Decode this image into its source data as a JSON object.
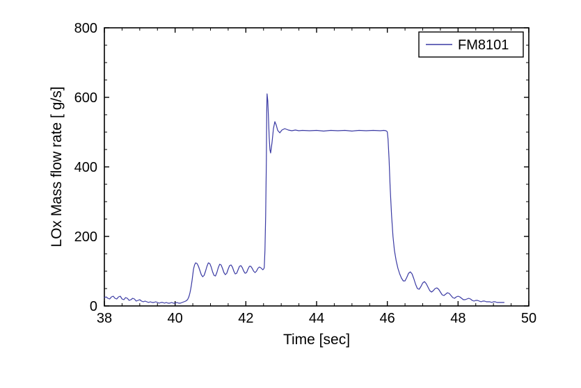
{
  "chart": {
    "type": "line",
    "background_color": "#ffffff",
    "plot_border_color": "#000000",
    "plot_border_width": 1.6,
    "axis_tick_length_major": 7,
    "axis_tick_length_minor": 4,
    "line_color": "#3939a3",
    "line_width": 1.2,
    "xlabel": "Time [sec]",
    "ylabel": "LOx Mass flow rate [ g/s]",
    "label_fontsize": 21,
    "tick_fontsize": 20,
    "xlim": [
      38,
      50
    ],
    "ylim": [
      0,
      800
    ],
    "xtick_step": 2,
    "ytick_step": 200,
    "x_minor_per_major": 4,
    "y_minor_per_major": 4,
    "legend": {
      "label": "FM8101",
      "border_color": "#000000",
      "line_color": "#3939a3",
      "position": "top-right"
    },
    "series": {
      "name": "FM8101",
      "points": [
        [
          38.0,
          24
        ],
        [
          38.05,
          26
        ],
        [
          38.1,
          22
        ],
        [
          38.15,
          20
        ],
        [
          38.2,
          26
        ],
        [
          38.25,
          28
        ],
        [
          38.3,
          22
        ],
        [
          38.35,
          20
        ],
        [
          38.4,
          26
        ],
        [
          38.45,
          28
        ],
        [
          38.5,
          20
        ],
        [
          38.55,
          18
        ],
        [
          38.6,
          24
        ],
        [
          38.65,
          22
        ],
        [
          38.7,
          16
        ],
        [
          38.75,
          18
        ],
        [
          38.8,
          22
        ],
        [
          38.85,
          20
        ],
        [
          38.9,
          14
        ],
        [
          38.95,
          16
        ],
        [
          39.0,
          18
        ],
        [
          39.05,
          14
        ],
        [
          39.1,
          12
        ],
        [
          39.15,
          14
        ],
        [
          39.2,
          12
        ],
        [
          39.25,
          10
        ],
        [
          39.3,
          12
        ],
        [
          39.35,
          10
        ],
        [
          39.4,
          10
        ],
        [
          39.45,
          12
        ],
        [
          39.5,
          10
        ],
        [
          39.55,
          8
        ],
        [
          39.6,
          10
        ],
        [
          39.65,
          10
        ],
        [
          39.7,
          8
        ],
        [
          39.75,
          10
        ],
        [
          39.8,
          8
        ],
        [
          39.85,
          8
        ],
        [
          39.9,
          10
        ],
        [
          39.95,
          8
        ],
        [
          40.0,
          8
        ],
        [
          40.05,
          10
        ],
        [
          40.1,
          8
        ],
        [
          40.15,
          8
        ],
        [
          40.2,
          10
        ],
        [
          40.25,
          12
        ],
        [
          40.3,
          14
        ],
        [
          40.35,
          18
        ],
        [
          40.38,
          24
        ],
        [
          40.4,
          30
        ],
        [
          40.42,
          38
        ],
        [
          40.44,
          48
        ],
        [
          40.46,
          60
        ],
        [
          40.48,
          74
        ],
        [
          40.5,
          90
        ],
        [
          40.52,
          106
        ],
        [
          40.55,
          118
        ],
        [
          40.58,
          124
        ],
        [
          40.62,
          122
        ],
        [
          40.66,
          114
        ],
        [
          40.7,
          102
        ],
        [
          40.74,
          90
        ],
        [
          40.78,
          84
        ],
        [
          40.82,
          88
        ],
        [
          40.86,
          100
        ],
        [
          40.9,
          114
        ],
        [
          40.94,
          124
        ],
        [
          40.98,
          122
        ],
        [
          41.02,
          112
        ],
        [
          41.06,
          98
        ],
        [
          41.1,
          88
        ],
        [
          41.14,
          86
        ],
        [
          41.18,
          96
        ],
        [
          41.22,
          110
        ],
        [
          41.26,
          120
        ],
        [
          41.3,
          118
        ],
        [
          41.34,
          108
        ],
        [
          41.38,
          96
        ],
        [
          41.42,
          90
        ],
        [
          41.46,
          94
        ],
        [
          41.5,
          106
        ],
        [
          41.54,
          116
        ],
        [
          41.58,
          118
        ],
        [
          41.62,
          112
        ],
        [
          41.66,
          100
        ],
        [
          41.7,
          92
        ],
        [
          41.74,
          94
        ],
        [
          41.78,
          104
        ],
        [
          41.82,
          114
        ],
        [
          41.86,
          116
        ],
        [
          41.9,
          110
        ],
        [
          41.94,
          100
        ],
        [
          41.98,
          94
        ],
        [
          42.02,
          96
        ],
        [
          42.06,
          106
        ],
        [
          42.1,
          114
        ],
        [
          42.14,
          114
        ],
        [
          42.18,
          108
        ],
        [
          42.22,
          100
        ],
        [
          42.26,
          96
        ],
        [
          42.3,
          100
        ],
        [
          42.34,
          108
        ],
        [
          42.38,
          112
        ],
        [
          42.42,
          110
        ],
        [
          42.46,
          106
        ],
        [
          42.48,
          104
        ],
        [
          42.5,
          106
        ],
        [
          42.52,
          110
        ],
        [
          42.54,
          160
        ],
        [
          42.56,
          260
        ],
        [
          42.58,
          420
        ],
        [
          42.59,
          560
        ],
        [
          42.6,
          610
        ],
        [
          42.62,
          590
        ],
        [
          42.64,
          540
        ],
        [
          42.66,
          485
        ],
        [
          42.68,
          450
        ],
        [
          42.7,
          440
        ],
        [
          42.74,
          470
        ],
        [
          42.78,
          510
        ],
        [
          42.82,
          530
        ],
        [
          42.86,
          520
        ],
        [
          42.9,
          505
        ],
        [
          42.96,
          498
        ],
        [
          43.02,
          506
        ],
        [
          43.1,
          510
        ],
        [
          43.2,
          506
        ],
        [
          43.3,
          504
        ],
        [
          43.4,
          506
        ],
        [
          43.5,
          504
        ],
        [
          43.6,
          505
        ],
        [
          43.8,
          504
        ],
        [
          44.0,
          505
        ],
        [
          44.2,
          503
        ],
        [
          44.4,
          505
        ],
        [
          44.6,
          504
        ],
        [
          44.8,
          505
        ],
        [
          45.0,
          503
        ],
        [
          45.2,
          505
        ],
        [
          45.4,
          504
        ],
        [
          45.6,
          505
        ],
        [
          45.8,
          504
        ],
        [
          45.9,
          505
        ],
        [
          45.96,
          504
        ],
        [
          45.99,
          502
        ],
        [
          46.0,
          500
        ],
        [
          46.02,
          480
        ],
        [
          46.05,
          420
        ],
        [
          46.08,
          340
        ],
        [
          46.12,
          260
        ],
        [
          46.16,
          200
        ],
        [
          46.2,
          160
        ],
        [
          46.25,
          130
        ],
        [
          46.3,
          108
        ],
        [
          46.35,
          92
        ],
        [
          46.4,
          80
        ],
        [
          46.45,
          72
        ],
        [
          46.5,
          72
        ],
        [
          46.55,
          82
        ],
        [
          46.6,
          94
        ],
        [
          46.65,
          98
        ],
        [
          46.7,
          92
        ],
        [
          46.75,
          78
        ],
        [
          46.8,
          62
        ],
        [
          46.85,
          50
        ],
        [
          46.9,
          48
        ],
        [
          46.95,
          56
        ],
        [
          47.0,
          66
        ],
        [
          47.05,
          70
        ],
        [
          47.1,
          64
        ],
        [
          47.15,
          54
        ],
        [
          47.2,
          44
        ],
        [
          47.25,
          40
        ],
        [
          47.3,
          44
        ],
        [
          47.35,
          50
        ],
        [
          47.4,
          52
        ],
        [
          47.45,
          48
        ],
        [
          47.5,
          40
        ],
        [
          47.55,
          32
        ],
        [
          47.6,
          30
        ],
        [
          47.65,
          34
        ],
        [
          47.7,
          38
        ],
        [
          47.75,
          36
        ],
        [
          47.8,
          30
        ],
        [
          47.85,
          24
        ],
        [
          47.9,
          22
        ],
        [
          47.95,
          26
        ],
        [
          48.0,
          28
        ],
        [
          48.05,
          26
        ],
        [
          48.1,
          22
        ],
        [
          48.15,
          18
        ],
        [
          48.2,
          18
        ],
        [
          48.25,
          20
        ],
        [
          48.3,
          22
        ],
        [
          48.35,
          20
        ],
        [
          48.4,
          16
        ],
        [
          48.45,
          14
        ],
        [
          48.5,
          16
        ],
        [
          48.55,
          16
        ],
        [
          48.6,
          14
        ],
        [
          48.65,
          12
        ],
        [
          48.7,
          14
        ],
        [
          48.75,
          14
        ],
        [
          48.8,
          12
        ],
        [
          48.85,
          12
        ],
        [
          48.9,
          12
        ],
        [
          48.95,
          10
        ],
        [
          49.0,
          12
        ],
        [
          49.05,
          12
        ],
        [
          49.1,
          10
        ],
        [
          49.15,
          10
        ],
        [
          49.2,
          10
        ],
        [
          49.25,
          10
        ],
        [
          49.3,
          10
        ]
      ]
    }
  }
}
